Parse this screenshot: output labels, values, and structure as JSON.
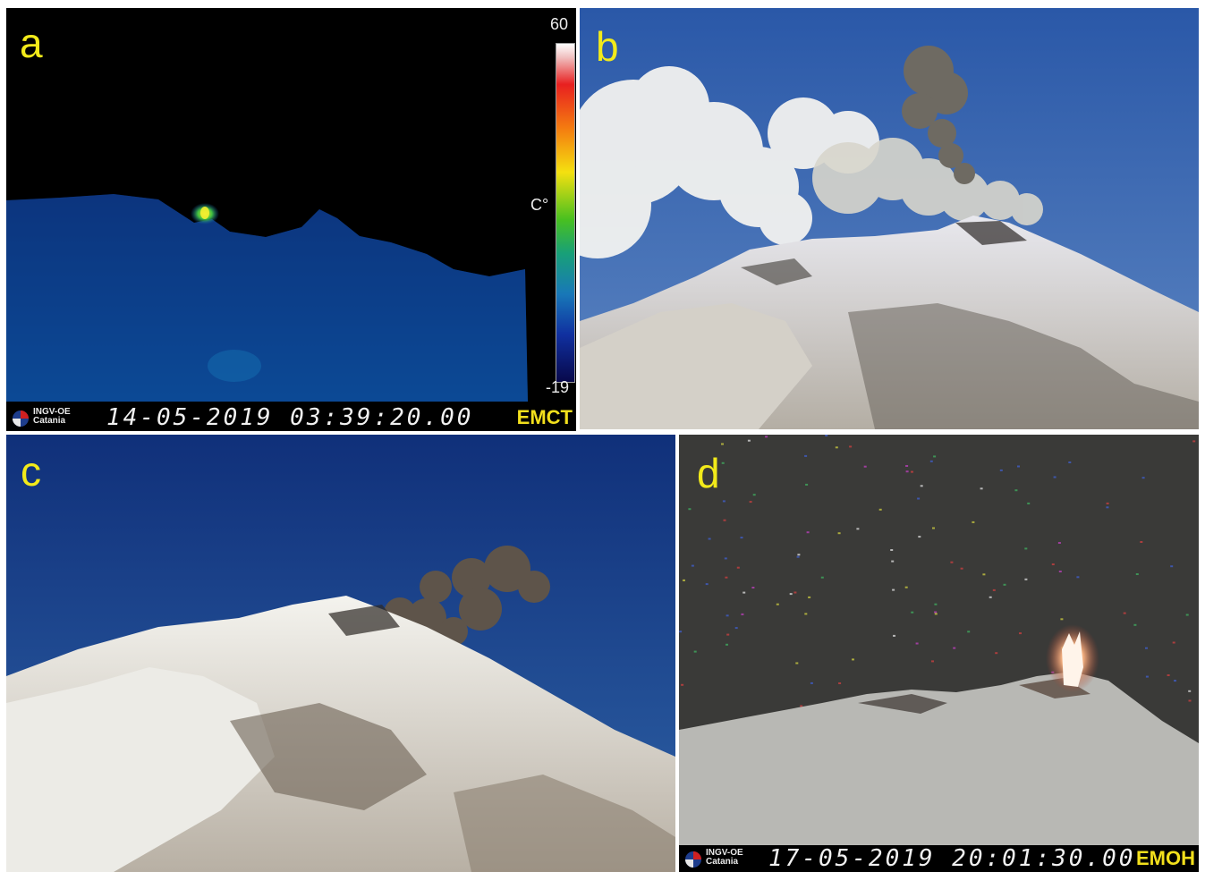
{
  "panels": {
    "a": {
      "letter": "a",
      "colorbar": {
        "max": "60",
        "min": "-19",
        "unit": "C°"
      },
      "overlay": {
        "logo_line1": "INGV-OE",
        "logo_line2": "Catania",
        "timestamp": "14-05-2019  03:39:20.00",
        "camera": "EMCT"
      }
    },
    "b": {
      "letter": "b"
    },
    "c": {
      "letter": "c"
    },
    "d": {
      "letter": "d",
      "overlay": {
        "logo_line1": "INGV-OE",
        "logo_line2": "Catania",
        "timestamp": "17-05-2019  20:01:30.00",
        "camera": "EMOH"
      }
    }
  },
  "colors": {
    "letter": "#f2ea1a",
    "camera_code": "#f2df1c",
    "thermal_background": "#000000",
    "day_sky": "#2c5aa8",
    "night_sky": "#3a3a38"
  }
}
